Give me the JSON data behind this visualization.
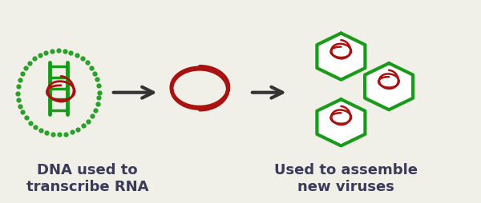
{
  "bg_color": "#f0f0e8",
  "green": "#1a9a1a",
  "dark_red": "#aa1111",
  "dark_gray": "#333333",
  "text_color": "#3a3a5a",
  "label1": "DNA used to\ntranscribe RNA",
  "label2": "Used to assemble\nnew viruses",
  "fontsize": 13
}
